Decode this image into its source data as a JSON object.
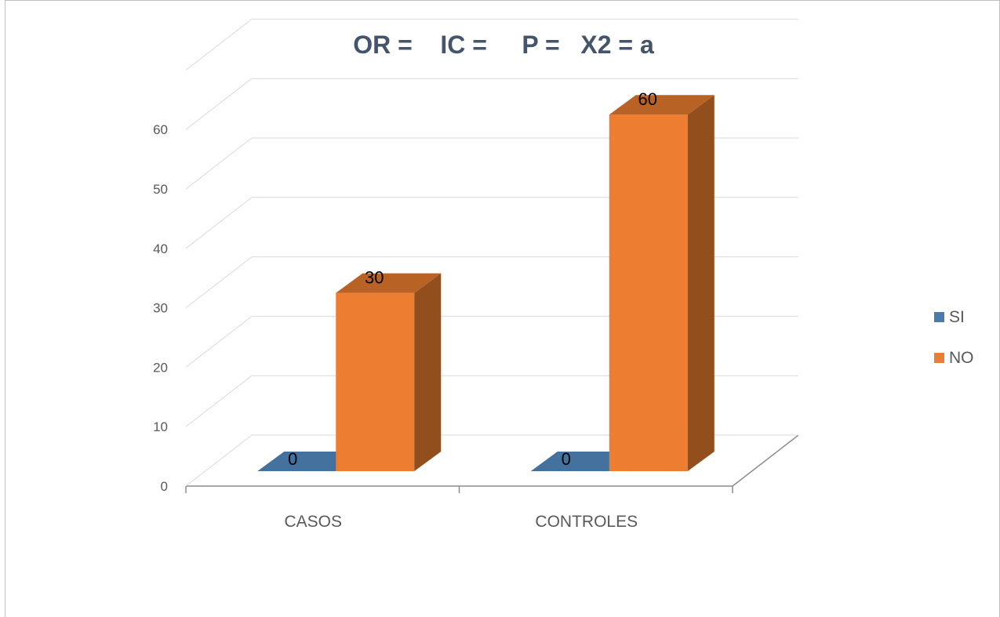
{
  "chart_data": {
    "type": "bar",
    "title": "OR =    IC =     P =   X2 = a",
    "categories": [
      "CASOS",
      "CONTROLES"
    ],
    "series": [
      {
        "name": "SI",
        "values": [
          0,
          0
        ],
        "color": "#4a7bab"
      },
      {
        "name": "NO",
        "values": [
          30,
          60
        ],
        "color": "#ed7d31"
      }
    ],
    "yticks": [
      0,
      10,
      20,
      30,
      40,
      50,
      60
    ],
    "ylim": [
      0,
      70
    ],
    "xlabel": "",
    "ylabel": "",
    "grid": true,
    "legend_position": "right",
    "three_d": true
  }
}
